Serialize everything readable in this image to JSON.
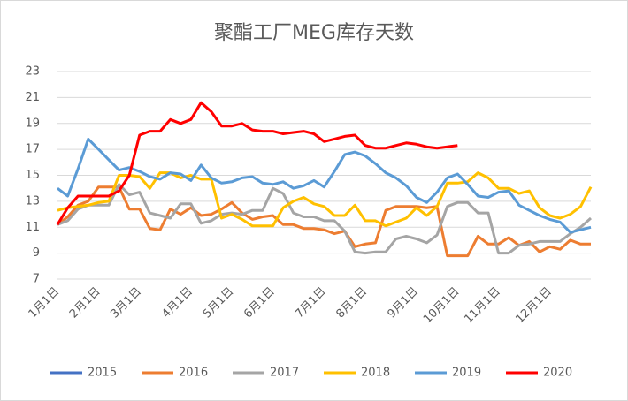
{
  "chart_data": {
    "type": "line",
    "title": "聚酯工厂MEG库存天数",
    "categories": [
      "1月1日",
      null,
      null,
      null,
      "2月1日",
      null,
      null,
      null,
      "3月1日",
      null,
      null,
      null,
      null,
      "4月1日",
      null,
      null,
      null,
      "5月1日",
      null,
      null,
      null,
      "6月1日",
      null,
      null,
      null,
      null,
      "7月1日",
      null,
      null,
      null,
      "8月1日",
      null,
      null,
      null,
      null,
      "9月1日",
      null,
      null,
      null,
      "10月1日",
      null,
      null,
      null,
      "11月1日",
      null,
      null,
      null,
      null,
      "12月1日",
      null,
      null,
      null,
      null
    ],
    "series": [
      {
        "name": "2015",
        "color": "#4472c4",
        "values": [
          null,
          null,
          null,
          null,
          null,
          null,
          null,
          null,
          null,
          null,
          null,
          null,
          null,
          null,
          null,
          null,
          null,
          null,
          null,
          null,
          null,
          null,
          null,
          null,
          null,
          null,
          null,
          null,
          null,
          null,
          null,
          null,
          null,
          null,
          null,
          null,
          null,
          null,
          null,
          null,
          null,
          null,
          null,
          null,
          null,
          null,
          null,
          null,
          null,
          null,
          null,
          null,
          null
        ]
      },
      {
        "name": "2016",
        "color": "#ed7d31",
        "values": [
          11.2,
          11.8,
          12.7,
          13.0,
          14.1,
          14.1,
          14.1,
          12.4,
          12.4,
          10.9,
          10.8,
          12.4,
          12.0,
          12.5,
          11.9,
          12.0,
          12.4,
          12.9,
          12.1,
          11.6,
          11.8,
          11.9,
          11.2,
          11.2,
          10.9,
          10.9,
          10.8,
          10.5,
          10.7,
          9.5,
          9.7,
          9.8,
          12.3,
          12.6,
          12.6,
          12.6,
          12.5,
          12.6,
          8.8,
          8.8,
          8.8,
          10.3,
          9.7,
          9.7,
          10.2,
          9.6,
          9.9,
          9.1,
          9.5,
          9.3,
          10.0,
          9.7,
          9.7
        ]
      },
      {
        "name": "2017",
        "color": "#a5a5a5",
        "values": [
          11.2,
          11.5,
          12.4,
          12.7,
          12.7,
          12.7,
          14.3,
          13.5,
          13.7,
          12.1,
          11.9,
          11.7,
          12.8,
          12.8,
          11.3,
          11.5,
          12.0,
          12.1,
          12.0,
          12.3,
          12.3,
          14.0,
          13.6,
          12.1,
          11.8,
          11.8,
          11.5,
          11.5,
          10.7,
          9.1,
          9.0,
          9.1,
          9.1,
          10.1,
          10.3,
          10.1,
          9.8,
          10.4,
          12.6,
          12.9,
          12.9,
          12.1,
          12.1,
          9.0,
          9.0,
          9.6,
          9.7,
          9.9,
          9.9,
          9.9,
          10.5,
          11.0,
          11.7
        ]
      },
      {
        "name": "2018",
        "color": "#ffc000",
        "values": [
          12.3,
          12.5,
          12.6,
          12.7,
          12.9,
          13.0,
          15.0,
          15.0,
          14.9,
          14.0,
          15.2,
          15.2,
          14.8,
          15.0,
          14.7,
          14.7,
          11.7,
          12.0,
          11.6,
          11.1,
          11.1,
          11.1,
          12.5,
          13.0,
          13.3,
          12.8,
          12.6,
          11.9,
          11.9,
          12.7,
          11.5,
          11.5,
          11.1,
          11.4,
          11.7,
          12.5,
          11.9,
          12.6,
          14.4,
          14.4,
          14.5,
          15.2,
          14.8,
          14.0,
          14.0,
          13.6,
          13.8,
          12.5,
          11.9,
          11.7,
          12.0,
          12.6,
          14.1
        ]
      },
      {
        "name": "2019",
        "color": "#5b9bd5",
        "values": [
          14.0,
          13.4,
          15.5,
          17.8,
          17.0,
          16.2,
          15.4,
          15.6,
          15.3,
          14.9,
          14.7,
          15.2,
          15.1,
          14.6,
          15.8,
          14.8,
          14.4,
          14.5,
          14.8,
          14.9,
          14.4,
          14.3,
          14.5,
          14.0,
          14.2,
          14.6,
          14.1,
          15.3,
          16.6,
          16.8,
          16.5,
          15.9,
          15.2,
          14.8,
          14.2,
          13.3,
          12.9,
          13.7,
          14.8,
          15.1,
          14.3,
          13.4,
          13.3,
          13.7,
          13.8,
          12.7,
          12.3,
          11.9,
          11.6,
          11.4,
          10.6,
          10.8,
          11.0
        ]
      },
      {
        "name": "2020",
        "color": "#ff0000",
        "values": [
          11.2,
          12.5,
          13.4,
          13.4,
          13.4,
          13.4,
          13.8,
          15.0,
          18.1,
          18.4,
          18.4,
          19.3,
          19.0,
          19.3,
          20.6,
          19.9,
          18.8,
          18.8,
          19.0,
          18.5,
          18.4,
          18.4,
          18.2,
          18.3,
          18.4,
          18.2,
          17.6,
          17.8,
          18.0,
          18.1,
          17.3,
          17.1,
          17.1,
          17.3,
          17.5,
          17.4,
          17.2,
          17.1,
          17.2,
          17.3,
          null,
          null,
          null,
          null,
          null,
          null,
          null,
          null,
          null,
          null,
          null,
          null,
          null
        ]
      }
    ],
    "ylim": [
      7,
      23
    ],
    "yticks": [
      7,
      9,
      11,
      13,
      15,
      17,
      19,
      21,
      23
    ],
    "grid": true,
    "legend": "bottom"
  }
}
